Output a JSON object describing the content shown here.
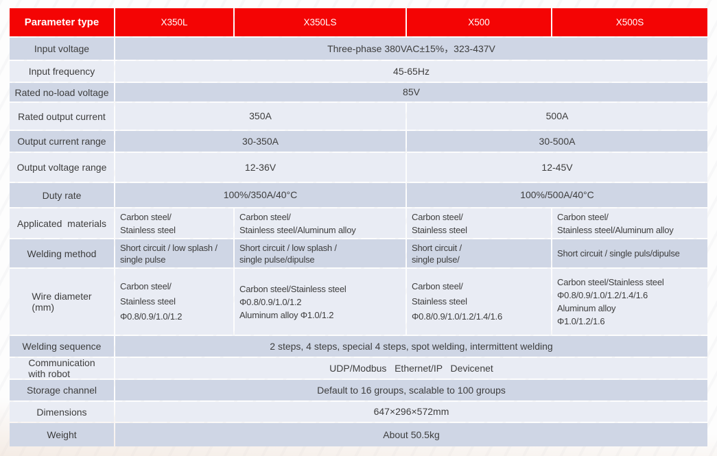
{
  "colors": {
    "header_bg": "#f40404",
    "header_text": "#ffffff",
    "row_dark": "#cfd6e5",
    "row_light": "#e9ecf4",
    "body_text": "#3d3d3d"
  },
  "table": {
    "header": {
      "param_label": "Parameter type",
      "models": [
        "X350L",
        "X350LS",
        "X500",
        "X500S"
      ]
    },
    "rows": [
      {
        "label": "Input voltage",
        "cells": [
          {
            "text": "Three-phase 380VAC±15%，323-437V"
          }
        ]
      },
      {
        "label": "Input frequency",
        "cells": [
          {
            "text": "45-65Hz"
          }
        ]
      },
      {
        "label": "Rated no-load voltage",
        "cells": [
          {
            "text": "85V"
          }
        ]
      },
      {
        "label": "Rated output current",
        "cells": [
          {
            "text": "350A"
          },
          {
            "text": "500A"
          }
        ]
      },
      {
        "label": "Output current range",
        "cells": [
          {
            "text": "30-350A"
          },
          {
            "text": "30-500A"
          }
        ]
      },
      {
        "label": "Output voltage range",
        "cells": [
          {
            "text": "12-36V"
          },
          {
            "text": "12-45V"
          }
        ]
      },
      {
        "label": "Duty rate",
        "cells": [
          {
            "text": "100%/350A/40°C"
          },
          {
            "text": "100%/500A/40°C"
          }
        ]
      },
      {
        "label": "Applicated  materials",
        "cells": [
          {
            "text": "Carbon steel/\nStainless steel"
          },
          {
            "text": "Carbon steel/\nStainless steel/Aluminum alloy"
          },
          {
            "text": "Carbon steel/\nStainless steel"
          },
          {
            "text": "Carbon steel/\nStainless steel/Aluminum alloy"
          }
        ]
      },
      {
        "label": "Welding method",
        "cells": [
          {
            "text": "Short circuit / low splash /\nsingle pulse"
          },
          {
            "text": "Short circuit / low splash /\nsingle pulse/dipulse"
          },
          {
            "text": "Short circuit /\nsingle pulse/"
          },
          {
            "text": "Short circuit / single puls/dipulse"
          }
        ]
      },
      {
        "label": "Wire diameter\n(mm)",
        "cells": [
          {
            "text": "Carbon steel/\nStainless steel\nΦ0.8/0.9/1.0/1.2"
          },
          {
            "text": "Carbon steel/Stainless steel\nΦ0.8/0.9/1.0/1.2\nAluminum alloy Φ1.0/1.2"
          },
          {
            "text": "Carbon steel/\nStainless steel\nΦ0.8/0.9/1.0/1.2/1.4/1.6"
          },
          {
            "text": "Carbon steel/Stainless steel\nΦ0.8/0.9/1.0/1.2/1.4/1.6\nAluminum alloy\nΦ1.0/1.2/1.6"
          }
        ]
      },
      {
        "label": "Welding sequence",
        "cells": [
          {
            "text": "2 steps, 4 steps, special 4 steps, spot welding, intermittent welding"
          }
        ]
      },
      {
        "label": "Communication\nwith robot",
        "cells": [
          {
            "text": "UDP/Modbus   Ethernet/IP   Devicenet"
          }
        ]
      },
      {
        "label": "Storage channel",
        "cells": [
          {
            "text": "Default to 16 groups, scalable to 100 groups"
          }
        ]
      },
      {
        "label": "Dimensions",
        "cells": [
          {
            "text": "647×296×572mm"
          }
        ]
      },
      {
        "label": "Weight",
        "cells": [
          {
            "text": "About 50.5kg"
          }
        ]
      }
    ]
  }
}
